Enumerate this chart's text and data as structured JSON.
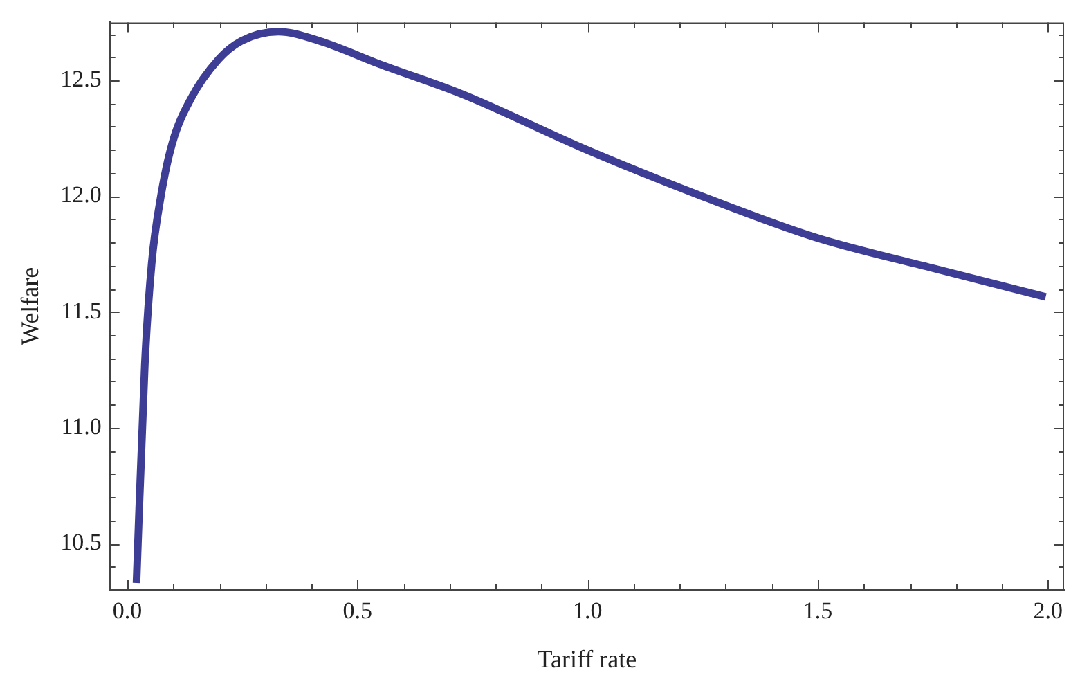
{
  "chart_data": {
    "type": "line",
    "xlabel": "Tariff rate",
    "ylabel": "Welfare",
    "xlim": [
      -0.038,
      2.035
    ],
    "ylim": [
      10.3,
      12.75
    ],
    "xticks": [
      {
        "value": 0,
        "label": "0.0"
      },
      {
        "value": 0.1,
        "label": null
      },
      {
        "value": 0.2,
        "label": null
      },
      {
        "value": 0.3,
        "label": null
      },
      {
        "value": 0.4,
        "label": null
      },
      {
        "value": 0.5,
        "label": "0.5"
      },
      {
        "value": 0.6,
        "label": null
      },
      {
        "value": 0.7,
        "label": null
      },
      {
        "value": 0.8,
        "label": null
      },
      {
        "value": 0.9,
        "label": null
      },
      {
        "value": 1,
        "label": "1.0"
      },
      {
        "value": 1.1,
        "label": null
      },
      {
        "value": 1.2,
        "label": null
      },
      {
        "value": 1.3,
        "label": null
      },
      {
        "value": 1.4,
        "label": null
      },
      {
        "value": 1.5,
        "label": "1.5"
      },
      {
        "value": 1.6,
        "label": null
      },
      {
        "value": 1.7,
        "label": null
      },
      {
        "value": 1.8,
        "label": null
      },
      {
        "value": 1.9,
        "label": null
      },
      {
        "value": 2,
        "label": "2.0"
      }
    ],
    "yticks": [
      {
        "value": 10.4,
        "label": null
      },
      10.5,
      {
        "value": 10.6,
        "label": null
      },
      {
        "value": 10.7,
        "label": null
      },
      {
        "value": 10.8,
        "label": null
      },
      {
        "value": 10.9,
        "label": null
      },
      {
        "value": 11,
        "label": "11.0"
      },
      {
        "value": 11.1,
        "label": null
      },
      {
        "value": 11.2,
        "label": null
      },
      {
        "value": 11.3,
        "label": null
      },
      {
        "value": 11.4,
        "label": null
      },
      11.5,
      {
        "value": 11.6,
        "label": null
      },
      {
        "value": 11.7,
        "label": null
      },
      {
        "value": 11.8,
        "label": null
      },
      {
        "value": 11.9,
        "label": null
      },
      {
        "value": 12,
        "label": "12.0"
      },
      {
        "value": 12.1,
        "label": null
      },
      {
        "value": 12.2,
        "label": null
      },
      {
        "value": 12.3,
        "label": null
      },
      {
        "value": 12.4,
        "label": null
      },
      12.5,
      {
        "value": 12.6,
        "label": null
      },
      {
        "value": 12.7,
        "label": null
      }
    ],
    "grid": false,
    "legend": false,
    "marker": "none",
    "line_style": "solid",
    "series": [
      {
        "color": "#3d3d96",
        "x": [
          0.02,
          0.038,
          0.053,
          0.073,
          0.098,
          0.138,
          0.198,
          0.248,
          0.328,
          0.418,
          0.548,
          0.728,
          0.998,
          1.248,
          1.498,
          1.748,
          1.995
        ],
        "values": [
          10.33,
          11.27,
          11.71,
          12.0,
          12.23,
          12.42,
          12.59,
          12.67,
          12.71,
          12.67,
          12.57,
          12.44,
          12.2,
          12.0,
          11.82,
          11.69,
          11.565
        ]
      }
    ]
  }
}
